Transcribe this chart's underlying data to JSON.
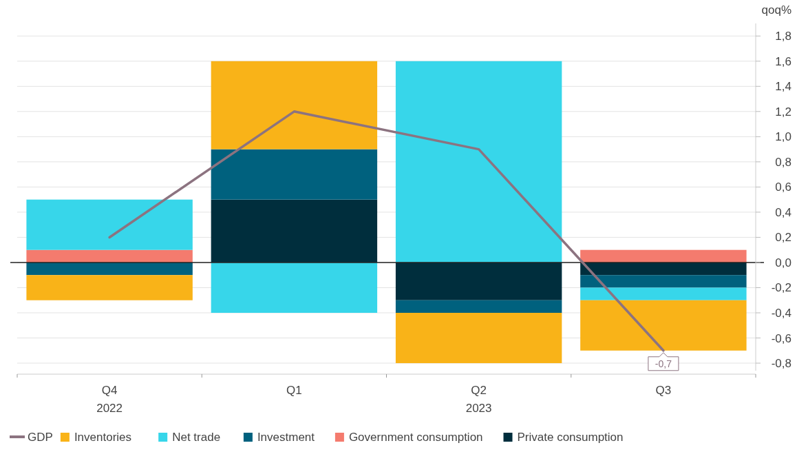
{
  "chart_data": {
    "type": "bar",
    "stacked": true,
    "ylabel": "qoq%",
    "categories": [
      "Q4",
      "Q1",
      "Q2",
      "Q3"
    ],
    "series": [
      {
        "name": "Private consumption",
        "color": "#002e3d",
        "values": [
          0,
          0.5,
          -0.3,
          -0.1
        ]
      },
      {
        "name": "Government consumption",
        "color": "#f47b6e",
        "values": [
          0.1,
          0,
          0,
          0.1
        ]
      },
      {
        "name": "Investment",
        "color": "#00617e",
        "values": [
          -0.1,
          0.4,
          -0.1,
          -0.1
        ]
      },
      {
        "name": "Net trade",
        "color": "#37d6ea",
        "values": [
          0.4,
          -0.4,
          1.6,
          -0.1
        ]
      },
      {
        "name": "Inventories",
        "color": "#f9b318",
        "values": [
          -0.2,
          0.7,
          -0.4,
          -0.4
        ]
      },
      {
        "name": "GDP",
        "type": "line",
        "color": "#8c7380",
        "values": [
          0.2,
          1.2,
          0.9,
          -0.7
        ],
        "value_labels": [
          null,
          null,
          null,
          "-0,7"
        ]
      }
    ],
    "ylim": [
      -0.86,
      1.9
    ],
    "yticks": [
      {
        "value": -0.8,
        "label": "-0,8"
      },
      {
        "value": -0.6,
        "label": "-0,6"
      },
      {
        "value": -0.4,
        "label": "-0,4"
      },
      {
        "value": -0.2,
        "label": "-0,2"
      },
      {
        "value": 0,
        "label": "0,0"
      },
      {
        "value": 0.2,
        "label": "0,2"
      },
      {
        "value": 0.4,
        "label": "0,4"
      },
      {
        "value": 0.6,
        "label": "0,6"
      },
      {
        "value": 0.8,
        "label": "0,8"
      },
      {
        "value": 1,
        "label": "1,0"
      },
      {
        "value": 1.2,
        "label": "1,2"
      },
      {
        "value": 1.4,
        "label": "1,4"
      },
      {
        "value": 1.6,
        "label": "1,6"
      },
      {
        "value": 1.8,
        "label": "1,8"
      }
    ],
    "annotations": [
      "2022",
      "2023"
    ],
    "grid": "y",
    "legend": "bottom",
    "marker": "none",
    "line_style": "solid"
  }
}
